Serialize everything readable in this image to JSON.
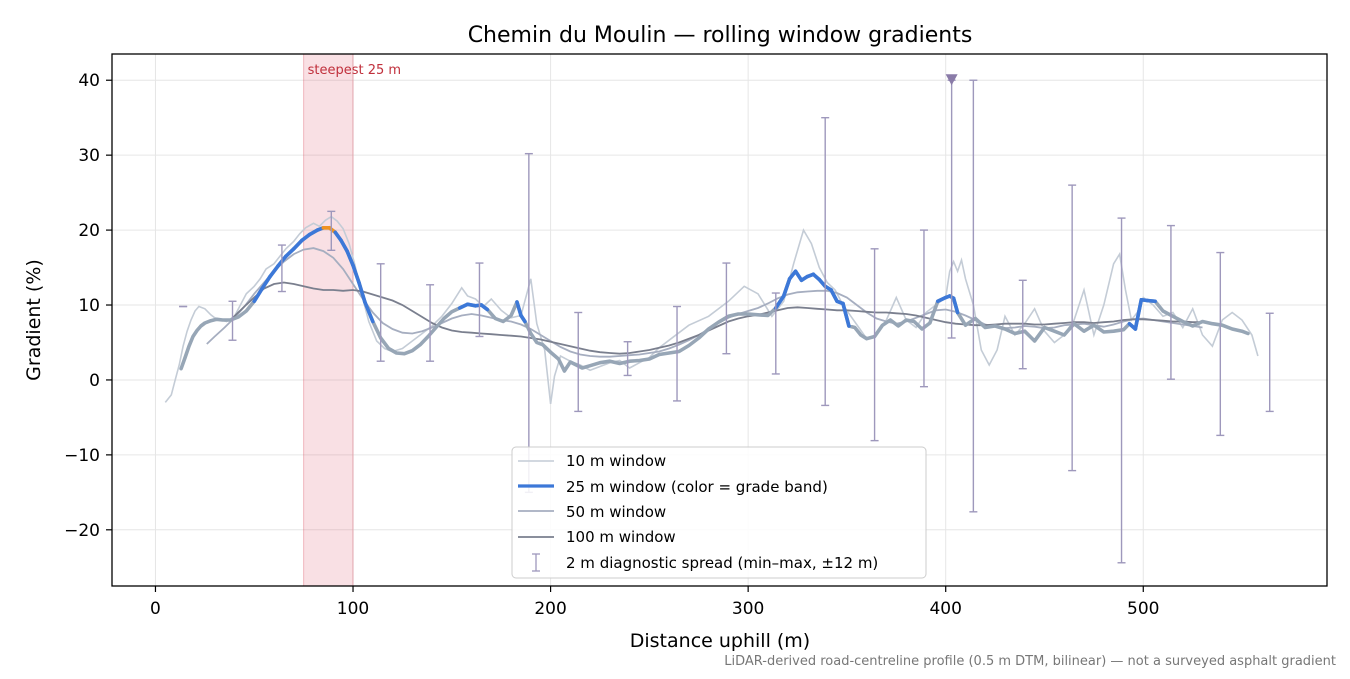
{
  "chart_data": {
    "type": "line",
    "title": "Chemin du Moulin — rolling window gradients",
    "xlabel": "Distance uphill (m)",
    "ylabel": "Gradient (%)",
    "xlim": [
      -22,
      593
    ],
    "ylim": [
      -27.5,
      43.5
    ],
    "xticks": [
      0,
      100,
      200,
      300,
      400,
      500
    ],
    "yticks": [
      -20,
      -10,
      0,
      10,
      20,
      30,
      40
    ],
    "grid": true,
    "legend_position": "lower-center",
    "footnote": "LiDAR-derived road-centreline profile (0.5 m DTM, bilinear) — not a surveyed asphalt gradient",
    "highlight": {
      "label": "steepest 25 m",
      "x_start": 75,
      "x_end": 100,
      "color": "#d94a5c"
    },
    "marker": {
      "x": 403,
      "y": 40,
      "shape": "triangle-down",
      "color": "#8a7ba8"
    },
    "series": [
      {
        "name": "10 m window",
        "color": "#c4ccd6",
        "x": [
          5,
          8,
          10,
          12,
          14,
          16,
          18,
          20,
          22,
          25,
          28,
          30,
          33,
          36,
          40,
          43,
          46,
          50,
          53,
          56,
          60,
          63,
          66,
          70,
          73,
          76,
          80,
          83,
          86,
          89,
          92,
          95,
          98,
          101,
          104,
          108,
          112,
          116,
          120,
          125,
          130,
          135,
          140,
          145,
          150,
          155,
          158,
          162,
          166,
          170,
          175,
          180,
          185,
          190,
          193,
          197,
          200,
          202,
          205,
          210,
          215,
          220,
          225,
          230,
          235,
          240,
          245,
          250,
          255,
          260,
          265,
          270,
          280,
          290,
          298,
          305,
          312,
          318,
          323,
          328,
          332,
          336,
          340,
          344,
          348,
          352,
          356,
          360,
          365,
          370,
          375,
          380,
          385,
          390,
          395,
          400,
          402,
          404,
          406,
          408,
          410,
          414,
          418,
          422,
          426,
          430,
          435,
          440,
          445,
          450,
          455,
          460,
          465,
          470,
          475,
          480,
          485,
          488,
          491,
          494,
          497,
          500,
          505,
          510,
          515,
          520,
          525,
          530,
          535,
          540,
          545,
          550,
          555,
          558
        ],
        "values": [
          -3,
          -2,
          0,
          2,
          4.5,
          6.5,
          8,
          9.2,
          9.8,
          9.5,
          8.7,
          8.3,
          8.0,
          7.8,
          8.5,
          10,
          11.5,
          12.5,
          13.5,
          14.8,
          15.5,
          16.5,
          17.5,
          18.5,
          19.5,
          20.3,
          20.9,
          20.5,
          21.3,
          21.8,
          21.2,
          20.2,
          18.2,
          15.3,
          11.8,
          7.8,
          5.2,
          4.2,
          3.8,
          4.2,
          5.2,
          6.2,
          7.2,
          8.5,
          10.2,
          12.3,
          11.2,
          10.8,
          9.8,
          10.8,
          9.3,
          8.3,
          8.6,
          13.5,
          7.5,
          4.0,
          -3.2,
          0.5,
          3.2,
          2.5,
          2.0,
          1.3,
          1.8,
          2.3,
          2.6,
          1.6,
          2.3,
          3.0,
          4.3,
          5.3,
          6.3,
          7.3,
          8.5,
          10.5,
          12.5,
          11.5,
          8.5,
          10.5,
          15.5,
          20.0,
          18.2,
          15.0,
          13.0,
          12.0,
          10.0,
          8.5,
          7.0,
          5.5,
          6.0,
          8.0,
          11.0,
          8.0,
          7.0,
          9.0,
          10.0,
          11.0,
          14.5,
          15.8,
          14.5,
          16.0,
          13.5,
          10.0,
          4.0,
          2.0,
          4.0,
          8.5,
          6.0,
          7.5,
          9.5,
          6.5,
          5.0,
          6.0,
          8.0,
          12.0,
          6.0,
          10.0,
          15.5,
          16.8,
          12.0,
          8.0,
          9.0,
          11.0,
          10.0,
          8.5,
          9.0,
          7.0,
          9.5,
          6.0,
          4.5,
          8.0,
          9.0,
          8.0,
          6.0,
          3.2
        ]
      },
      {
        "name": "25 m window (color = grade band)",
        "color": "#3c78d8",
        "base_color": "#97a6b6",
        "highlight_color": "#f0921e",
        "highlight_range": [
          84,
          90
        ],
        "colored_ranges": [
          [
            50,
            110
          ],
          [
            155,
            168
          ],
          [
            183,
            187
          ],
          [
            314,
            351
          ],
          [
            396,
            405
          ],
          [
            493,
            506
          ]
        ],
        "x": [
          13,
          15,
          17,
          19,
          21,
          23,
          25,
          28,
          31,
          34,
          38,
          42,
          46,
          50,
          54,
          58,
          62,
          66,
          70,
          74,
          78,
          82,
          85,
          88,
          91,
          94,
          97,
          100,
          103,
          106,
          110,
          114,
          118,
          122,
          126,
          130,
          134,
          138,
          142,
          146,
          150,
          154,
          158,
          162,
          165,
          168,
          172,
          176,
          180,
          183,
          185,
          187,
          190,
          193,
          196,
          200,
          204,
          207,
          210,
          213,
          216,
          220,
          225,
          230,
          235,
          240,
          245,
          250,
          255,
          260,
          265,
          270,
          275,
          280,
          285,
          290,
          295,
          300,
          305,
          310,
          314,
          318,
          321,
          324,
          327,
          330,
          333,
          336,
          339,
          342,
          345,
          348,
          351,
          354,
          357,
          360,
          364,
          368,
          372,
          376,
          380,
          384,
          388,
          392,
          396,
          400,
          402,
          404,
          406,
          410,
          415,
          420,
          425,
          430,
          435,
          440,
          445,
          450,
          455,
          460,
          465,
          470,
          475,
          480,
          485,
          490,
          493,
          496,
          499,
          502,
          506,
          510,
          515,
          520,
          525,
          530,
          535,
          540,
          545,
          550,
          553
        ],
        "values": [
          1.5,
          3.0,
          4.5,
          5.8,
          6.6,
          7.2,
          7.6,
          7.9,
          8.1,
          8.0,
          8.0,
          8.4,
          9.2,
          10.5,
          12.2,
          13.8,
          15.2,
          16.5,
          17.5,
          18.6,
          19.4,
          20.0,
          20.3,
          20.3,
          19.7,
          18.6,
          17.2,
          15.3,
          13.0,
          10.4,
          7.8,
          5.6,
          4.2,
          3.6,
          3.5,
          3.9,
          4.7,
          5.8,
          7.0,
          8.2,
          9.1,
          9.6,
          10.1,
          9.9,
          10.0,
          9.4,
          8.2,
          7.8,
          8.6,
          10.4,
          8.6,
          7.8,
          6.2,
          5.0,
          4.7,
          3.7,
          2.8,
          1.2,
          2.4,
          2.0,
          1.6,
          1.9,
          2.3,
          2.5,
          2.2,
          2.5,
          2.6,
          2.8,
          3.4,
          3.6,
          3.8,
          4.6,
          5.6,
          6.8,
          7.7,
          8.5,
          8.8,
          8.8,
          8.7,
          8.6,
          9.6,
          11.2,
          13.5,
          14.5,
          13.3,
          13.8,
          14.1,
          13.4,
          12.5,
          12.0,
          10.5,
          10.2,
          7.2,
          7.0,
          6.0,
          5.5,
          5.8,
          7.3,
          8.0,
          7.2,
          8.0,
          7.8,
          6.8,
          7.6,
          10.5,
          11.0,
          11.2,
          10.9,
          9.0,
          7.3,
          8.2,
          7.0,
          7.2,
          6.8,
          6.2,
          6.5,
          5.2,
          7.0,
          6.5,
          6.0,
          7.5,
          6.5,
          7.3,
          6.4,
          6.5,
          6.7,
          7.5,
          6.8,
          10.7,
          10.6,
          10.5,
          9.2,
          8.5,
          7.8,
          7.2,
          7.8,
          7.5,
          7.3,
          6.8,
          6.5,
          6.2
        ]
      },
      {
        "name": "50 m window",
        "color": "#a6aec0",
        "x": [
          26,
          30,
          35,
          40,
          45,
          50,
          55,
          60,
          65,
          70,
          75,
          80,
          85,
          90,
          95,
          100,
          105,
          110,
          115,
          120,
          125,
          130,
          135,
          140,
          145,
          150,
          155,
          160,
          165,
          170,
          175,
          180,
          185,
          190,
          195,
          200,
          205,
          210,
          215,
          220,
          225,
          230,
          235,
          240,
          245,
          250,
          255,
          260,
          265,
          270,
          275,
          280,
          285,
          290,
          295,
          300,
          305,
          310,
          315,
          320,
          325,
          330,
          335,
          340,
          345,
          350,
          355,
          360,
          365,
          370,
          375,
          380,
          385,
          390,
          395,
          400,
          405,
          410,
          415,
          420,
          425,
          430,
          435,
          440,
          445,
          450,
          455,
          460,
          465,
          470,
          475,
          480,
          485,
          490,
          495,
          500,
          505,
          510,
          515,
          520,
          525,
          530
        ],
        "values": [
          4.8,
          5.8,
          7.0,
          8.3,
          9.8,
          11.5,
          13.0,
          14.5,
          15.8,
          16.8,
          17.4,
          17.6,
          17.2,
          16.3,
          14.8,
          12.8,
          10.8,
          9.0,
          7.6,
          6.8,
          6.3,
          6.2,
          6.5,
          7.0,
          7.6,
          8.2,
          8.6,
          8.8,
          8.6,
          8.3,
          8.0,
          7.8,
          7.4,
          6.8,
          6.0,
          5.2,
          4.4,
          3.8,
          3.4,
          3.2,
          3.1,
          3.1,
          3.2,
          3.3,
          3.4,
          3.6,
          3.8,
          4.2,
          4.7,
          5.3,
          6.0,
          6.8,
          7.6,
          8.3,
          8.8,
          9.2,
          9.6,
          10.2,
          10.9,
          11.4,
          11.7,
          11.8,
          11.9,
          11.9,
          11.6,
          11.0,
          10.0,
          9.0,
          8.2,
          7.8,
          7.5,
          7.8,
          8.3,
          8.8,
          9.3,
          9.4,
          9.1,
          8.6,
          8.0,
          7.4,
          7.1,
          6.9,
          7.0,
          7.2,
          7.1,
          6.9,
          7.0,
          7.3,
          7.4,
          7.5,
          7.3,
          7.1,
          7.4,
          7.8,
          8.1,
          8.2,
          8.0,
          7.8,
          7.6,
          7.4,
          7.2,
          7.0
        ]
      },
      {
        "name": "100 m window",
        "color": "#7a7f8e",
        "x": [
          38,
          45,
          50,
          55,
          60,
          65,
          70,
          75,
          80,
          85,
          90,
          95,
          100,
          105,
          110,
          115,
          120,
          125,
          130,
          135,
          140,
          145,
          150,
          155,
          160,
          165,
          170,
          175,
          180,
          185,
          190,
          195,
          200,
          205,
          210,
          215,
          220,
          225,
          230,
          235,
          240,
          245,
          250,
          255,
          260,
          265,
          270,
          275,
          280,
          285,
          290,
          295,
          300,
          305,
          310,
          315,
          320,
          325,
          330,
          335,
          340,
          345,
          350,
          355,
          360,
          365,
          370,
          375,
          380,
          385,
          390,
          395,
          400,
          405,
          410,
          415,
          420,
          425,
          430,
          435,
          440,
          445,
          450,
          455,
          460,
          465,
          470,
          475,
          480,
          485,
          490,
          495,
          500,
          505,
          510,
          515,
          520,
          525,
          530
        ],
        "values": [
          8.0,
          9.8,
          11.0,
          12.2,
          12.8,
          13.0,
          12.8,
          12.5,
          12.2,
          12.0,
          12.0,
          11.9,
          12.0,
          11.8,
          11.4,
          11.0,
          10.6,
          10.0,
          9.2,
          8.4,
          7.6,
          7.0,
          6.6,
          6.4,
          6.3,
          6.2,
          6.1,
          6.0,
          5.9,
          5.8,
          5.6,
          5.4,
          5.1,
          4.8,
          4.5,
          4.2,
          3.9,
          3.7,
          3.6,
          3.5,
          3.6,
          3.8,
          4.0,
          4.3,
          4.6,
          5.0,
          5.5,
          6.0,
          6.6,
          7.2,
          7.8,
          8.2,
          8.5,
          8.7,
          9.0,
          9.3,
          9.6,
          9.7,
          9.6,
          9.5,
          9.4,
          9.3,
          9.3,
          9.2,
          9.1,
          9.0,
          9.0,
          8.9,
          8.8,
          8.6,
          8.3,
          8.0,
          7.7,
          7.5,
          7.4,
          7.3,
          7.3,
          7.4,
          7.5,
          7.5,
          7.5,
          7.4,
          7.4,
          7.5,
          7.6,
          7.7,
          7.7,
          7.6,
          7.7,
          7.8,
          8.0,
          8.1,
          8.1,
          8.0,
          7.9,
          7.8,
          7.8,
          7.7,
          7.7
        ]
      }
    ],
    "error_bars": {
      "name": "2 m diagnostic spread (min–max, ±12 m)",
      "color": "#9e98bc",
      "points": [
        {
          "x": 14,
          "min": 9.8,
          "max": 9.8
        },
        {
          "x": 39,
          "min": 5.3,
          "max": 10.5
        },
        {
          "x": 64,
          "min": 11.8,
          "max": 18.0
        },
        {
          "x": 89,
          "min": 17.3,
          "max": 22.5
        },
        {
          "x": 114,
          "min": 2.5,
          "max": 15.5
        },
        {
          "x": 139,
          "min": 2.5,
          "max": 12.7
        },
        {
          "x": 164,
          "min": 5.8,
          "max": 15.6
        },
        {
          "x": 189,
          "min": -15.0,
          "max": 30.2
        },
        {
          "x": 214,
          "min": -4.2,
          "max": 9.0
        },
        {
          "x": 239,
          "min": 0.6,
          "max": 5.1
        },
        {
          "x": 264,
          "min": -2.8,
          "max": 9.8
        },
        {
          "x": 289,
          "min": 3.5,
          "max": 15.6
        },
        {
          "x": 314,
          "min": 0.8,
          "max": 11.6
        },
        {
          "x": 339,
          "min": -3.4,
          "max": 35.0
        },
        {
          "x": 364,
          "min": -8.1,
          "max": 17.5
        },
        {
          "x": 389,
          "min": -0.9,
          "max": 20.0
        },
        {
          "x": 403,
          "min": 5.6,
          "max": 40.0
        },
        {
          "x": 414,
          "min": -17.6,
          "max": 40.0
        },
        {
          "x": 439,
          "min": 1.5,
          "max": 13.3
        },
        {
          "x": 464,
          "min": -12.1,
          "max": 26.0
        },
        {
          "x": 489,
          "min": -24.4,
          "max": 21.6
        },
        {
          "x": 514,
          "min": 0.1,
          "max": 20.6
        },
        {
          "x": 539,
          "min": -7.4,
          "max": 17.0
        },
        {
          "x": 564,
          "min": -4.2,
          "max": 8.9
        }
      ]
    }
  }
}
